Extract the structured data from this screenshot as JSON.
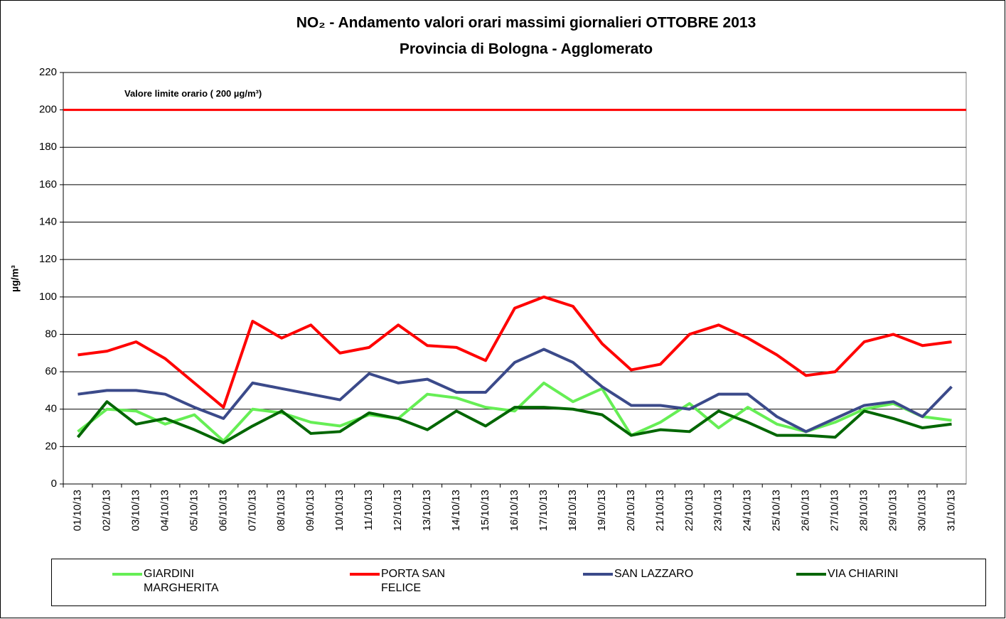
{
  "chart_data": {
    "type": "line",
    "title": "NO₂ - Andamento valori orari massimi giornalieri OTTOBRE 2013",
    "subtitle": "Provincia di Bologna - Agglomerato",
    "y_label": "µg/m³",
    "categories": [
      "01/10/13",
      "02/10/13",
      "03/10/13",
      "04/10/13",
      "05/10/13",
      "06/10/13",
      "07/10/13",
      "08/10/13",
      "09/10/13",
      "10/10/13",
      "11/10/13",
      "12/10/13",
      "13/10/13",
      "14/10/13",
      "15/10/13",
      "16/10/13",
      "17/10/13",
      "18/10/13",
      "19/10/13",
      "20/10/13",
      "21/10/13",
      "22/10/13",
      "23/10/13",
      "24/10/13",
      "25/10/13",
      "26/10/13",
      "27/10/13",
      "28/10/13",
      "29/10/13",
      "30/10/13",
      "31/10/13"
    ],
    "series": [
      {
        "name": "GIARDINI MARGHERITA",
        "color": "#66ee55",
        "values": [
          28,
          40,
          39,
          32,
          37,
          23,
          40,
          38,
          33,
          31,
          37,
          35,
          48,
          46,
          41,
          39,
          54,
          44,
          51,
          26,
          33,
          43,
          30,
          41,
          32,
          28,
          33,
          40,
          43,
          36,
          34
        ]
      },
      {
        "name": "PORTA SAN FELICE",
        "color": "#ff0000",
        "values": [
          69,
          71,
          76,
          67,
          54,
          41,
          87,
          78,
          85,
          70,
          73,
          85,
          74,
          73,
          66,
          94,
          100,
          95,
          75,
          61,
          64,
          80,
          85,
          78,
          69,
          58,
          60,
          76,
          80,
          74,
          76
        ]
      },
      {
        "name": "SAN LAZZARO",
        "color": "#3b4a8a",
        "values": [
          48,
          50,
          50,
          48,
          41,
          35,
          54,
          51,
          48,
          45,
          59,
          54,
          56,
          49,
          49,
          65,
          72,
          65,
          52,
          42,
          42,
          40,
          48,
          48,
          36,
          28,
          35,
          42,
          44,
          36,
          52
        ]
      },
      {
        "name": "VIA CHIARINI",
        "color": "#006600",
        "values": [
          25,
          44,
          32,
          35,
          29,
          22,
          31,
          39,
          27,
          28,
          38,
          35,
          29,
          39,
          31,
          41,
          41,
          40,
          37,
          26,
          29,
          28,
          39,
          33,
          26,
          26,
          25,
          39,
          35,
          30,
          32
        ]
      }
    ],
    "reference_line": {
      "value": 200,
      "label": "Valore limite orario ( 200 µg/m³)",
      "color": "#ff0000"
    },
    "ylim": [
      0,
      220
    ],
    "yticks": [
      0,
      20,
      40,
      60,
      80,
      100,
      120,
      140,
      160,
      180,
      200,
      220
    ],
    "grid": true
  }
}
